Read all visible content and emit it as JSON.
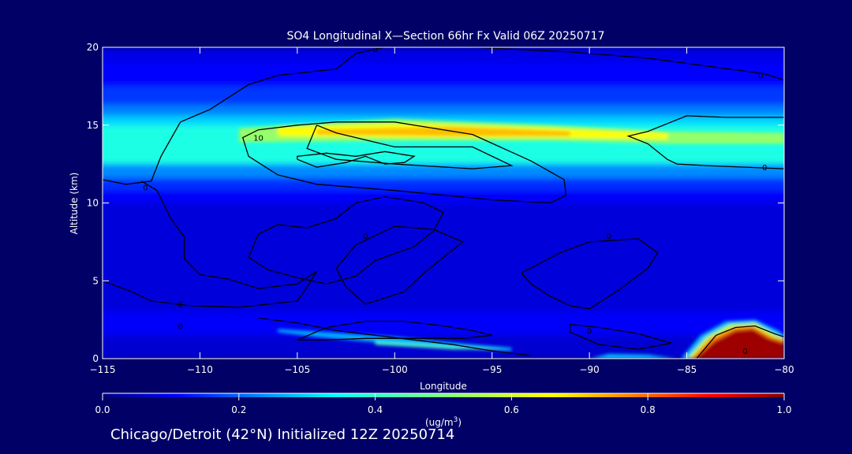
{
  "chart_data": {
    "type": "heatmap",
    "title": "SO4 Longitudinal X—Section 66hr  Fx Valid 06Z 20250717",
    "xlabel": "Longitude",
    "ylabel": "Altitude (km)",
    "xlim": [
      -115,
      -80
    ],
    "ylim": [
      0,
      20
    ],
    "x_ticks": [
      -115,
      -110,
      -105,
      -100,
      -95,
      -90,
      -85,
      -80
    ],
    "x_tick_labels": [
      "−115",
      "−110",
      "−105",
      "−100",
      "−95",
      "−90",
      "−85",
      "−80"
    ],
    "y_ticks": [
      0,
      5,
      10,
      15,
      20
    ],
    "y_tick_labels": [
      "0",
      "5",
      "10",
      "15",
      "20"
    ],
    "colorbar": {
      "min": 0.0,
      "max": 1.0,
      "ticks": [
        0.0,
        0.2,
        0.4,
        0.6,
        0.8,
        1.0
      ],
      "tick_labels": [
        "0.0",
        "0.2",
        "0.4",
        "0.6",
        "0.8",
        "1.0"
      ],
      "units_prefix": "(ug/m",
      "units_sup": "3",
      "units_suffix": ")",
      "colormap": "jet"
    },
    "background_levels": [
      {
        "z": [
          19,
          20
        ],
        "v": 0.1
      },
      {
        "z": [
          17.5,
          19
        ],
        "v": 0.13
      },
      {
        "z": [
          16.3,
          17.5
        ],
        "v": 0.18
      },
      {
        "z": [
          15.6,
          16.3
        ],
        "v": 0.25
      },
      {
        "z": [
          15.0,
          15.6
        ],
        "v": 0.33
      },
      {
        "z": [
          12.5,
          15.0
        ],
        "v": 0.4
      },
      {
        "z": [
          11.6,
          12.5
        ],
        "v": 0.26
      },
      {
        "z": [
          10.8,
          11.6
        ],
        "v": 0.17
      },
      {
        "z": [
          10.0,
          10.8
        ],
        "v": 0.12
      },
      {
        "z": [
          3.0,
          10.0
        ],
        "v": 0.09
      },
      {
        "z": [
          1.5,
          3.0
        ],
        "v": 0.12
      },
      {
        "z": [
          0,
          1.5
        ],
        "v": 0.08
      }
    ],
    "filled_features": [
      {
        "v": 0.52,
        "points": [
          [
            -108,
            14.8
          ],
          [
            -100,
            15.4
          ],
          [
            -92,
            15.0
          ],
          [
            -86,
            14.6
          ],
          [
            -80,
            14.5
          ],
          [
            -80,
            13.8
          ],
          [
            -86,
            13.8
          ],
          [
            -92,
            14.0
          ],
          [
            -100,
            14.0
          ],
          [
            -108,
            13.9
          ]
        ]
      },
      {
        "v": 0.62,
        "points": [
          [
            -106,
            14.9
          ],
          [
            -99,
            15.1
          ],
          [
            -92,
            14.8
          ],
          [
            -86,
            14.5
          ],
          [
            -86,
            14.1
          ],
          [
            -92,
            14.2
          ],
          [
            -99,
            14.2
          ],
          [
            -106,
            14.3
          ]
        ]
      },
      {
        "v": 0.69,
        "points": [
          [
            -104,
            14.7
          ],
          [
            -97,
            14.9
          ],
          [
            -91,
            14.6
          ],
          [
            -91,
            14.3
          ],
          [
            -97,
            14.3
          ],
          [
            -104,
            14.4
          ]
        ]
      },
      {
        "v": 0.3,
        "points": [
          [
            -106,
            1.9
          ],
          [
            -100,
            1.4
          ],
          [
            -96,
            0.9
          ],
          [
            -94,
            0.7
          ],
          [
            -94,
            0.5
          ],
          [
            -98,
            0.7
          ],
          [
            -104,
            1.4
          ],
          [
            -106,
            1.7
          ]
        ]
      },
      {
        "v": 0.45,
        "points": [
          [
            -101,
            1.1
          ],
          [
            -97,
            0.8
          ],
          [
            -94,
            0.6
          ],
          [
            -97,
            0.6
          ],
          [
            -101,
            0.9
          ]
        ]
      },
      {
        "v": 0.32,
        "points": [
          [
            -90,
            0
          ],
          [
            -89,
            0.3
          ],
          [
            -87,
            0.25
          ],
          [
            -85.5,
            0
          ],
          [
            -90,
            0
          ]
        ]
      },
      {
        "v": 0.3,
        "points": [
          [
            -85.3,
            0
          ],
          [
            -84.3,
            1.5
          ],
          [
            -83,
            2.4
          ],
          [
            -81.5,
            2.5
          ],
          [
            -80.3,
            1.8
          ],
          [
            -80,
            1.5
          ],
          [
            -80,
            0
          ]
        ]
      },
      {
        "v": 0.55,
        "points": [
          [
            -85.0,
            0
          ],
          [
            -84.0,
            1.4
          ],
          [
            -82.8,
            2.2
          ],
          [
            -81.5,
            2.3
          ],
          [
            -80.5,
            1.6
          ],
          [
            -80,
            1.3
          ],
          [
            -80,
            0
          ]
        ]
      },
      {
        "v": 0.75,
        "points": [
          [
            -84.8,
            0
          ],
          [
            -83.8,
            1.3
          ],
          [
            -82.6,
            2.0
          ],
          [
            -81.6,
            2.1
          ],
          [
            -80.6,
            1.4
          ],
          [
            -80,
            1.2
          ],
          [
            -80,
            0
          ]
        ]
      },
      {
        "v": 0.97,
        "points": [
          [
            -84.6,
            0
          ],
          [
            -83.6,
            1.1
          ],
          [
            -82.5,
            1.8
          ],
          [
            -81.6,
            1.9
          ],
          [
            -80.8,
            1.3
          ],
          [
            -80,
            1.0
          ],
          [
            -80,
            0
          ]
        ]
      }
    ],
    "contours": [
      {
        "points": [
          [
            -115,
            11.5
          ],
          [
            -113.8,
            11.2
          ],
          [
            -112.5,
            11.4
          ],
          [
            -112.0,
            13.0
          ],
          [
            -111.0,
            15.2
          ],
          [
            -109.5,
            16.0
          ],
          [
            -107.5,
            17.6
          ],
          [
            -106.0,
            18.2
          ],
          [
            -103.0,
            18.6
          ],
          [
            -102.0,
            19.6
          ],
          [
            -100.5,
            20.0
          ],
          [
            -96.0,
            20.0
          ],
          [
            -91.0,
            19.7
          ],
          [
            -87.0,
            19.3
          ],
          [
            -84.0,
            18.8
          ],
          [
            -81.0,
            18.3
          ],
          [
            -80.0,
            17.9
          ]
        ]
      },
      {
        "points": [
          [
            -80,
            12.2
          ],
          [
            -82.0,
            12.3
          ],
          [
            -84.0,
            12.4
          ],
          [
            -85.5,
            12.5
          ],
          [
            -86.0,
            12.8
          ],
          [
            -87.0,
            13.8
          ],
          [
            -88.0,
            14.3
          ],
          [
            -87.0,
            14.6
          ],
          [
            -85.0,
            15.6
          ],
          [
            -83.0,
            15.5
          ],
          [
            -80,
            15.5
          ]
        ]
      },
      {
        "points": [
          [
            -107.5,
            13.0
          ],
          [
            -106.0,
            11.8
          ],
          [
            -104.0,
            11.2
          ],
          [
            -100.0,
            10.8
          ],
          [
            -95.0,
            10.2
          ],
          [
            -92.0,
            10.0
          ],
          [
            -91.2,
            10.5
          ],
          [
            -91.3,
            11.5
          ],
          [
            -93.0,
            12.7
          ],
          [
            -96.0,
            14.4
          ],
          [
            -100.0,
            15.2
          ],
          [
            -103.0,
            15.2
          ],
          [
            -105.0,
            15.0
          ],
          [
            -107.0,
            14.7
          ],
          [
            -107.8,
            14.2
          ],
          [
            -107.5,
            13.0
          ]
        ]
      },
      {
        "points": [
          [
            -104.0,
            15.0
          ],
          [
            -103.0,
            14.5
          ],
          [
            -100.0,
            13.6
          ],
          [
            -96.0,
            13.6
          ],
          [
            -94.0,
            12.4
          ],
          [
            -96.0,
            12.2
          ],
          [
            -100.0,
            12.5
          ],
          [
            -103.0,
            12.8
          ],
          [
            -104.5,
            13.5
          ],
          [
            -104.0,
            15.0
          ]
        ]
      },
      {
        "points": [
          [
            -105.0,
            12.8
          ],
          [
            -104.0,
            12.3
          ],
          [
            -102.5,
            12.6
          ],
          [
            -101.5,
            13.0
          ],
          [
            -100.5,
            12.5
          ],
          [
            -99.5,
            12.6
          ],
          [
            -99.0,
            13.0
          ],
          [
            -100.5,
            13.3
          ],
          [
            -102.0,
            13.0
          ],
          [
            -103.5,
            13.2
          ],
          [
            -105.0,
            13.0
          ],
          [
            -105.0,
            12.8
          ]
        ]
      },
      {
        "points": [
          [
            -115,
            5.0
          ],
          [
            -113.5,
            4.3
          ],
          [
            -112.5,
            3.7
          ],
          [
            -110.5,
            3.4
          ],
          [
            -108.0,
            3.3
          ],
          [
            -106.5,
            3.5
          ],
          [
            -105.0,
            3.7
          ],
          [
            -104.5,
            4.6
          ],
          [
            -104.0,
            5.6
          ],
          [
            -105.0,
            4.8
          ],
          [
            -107.0,
            4.5
          ],
          [
            -108.5,
            5.1
          ],
          [
            -110.0,
            5.4
          ],
          [
            -110.8,
            6.4
          ],
          [
            -110.8,
            7.8
          ],
          [
            -111.5,
            9.0
          ],
          [
            -112.2,
            10.8
          ],
          [
            -113.0,
            11.4
          ]
        ]
      },
      {
        "points": [
          [
            -107.5,
            6.5
          ],
          [
            -107.0,
            8.0
          ],
          [
            -106.0,
            8.6
          ],
          [
            -104.5,
            8.4
          ],
          [
            -103.0,
            9.0
          ],
          [
            -102.0,
            10.0
          ],
          [
            -100.5,
            10.4
          ],
          [
            -98.5,
            10.0
          ],
          [
            -97.5,
            9.4
          ],
          [
            -98.0,
            8.2
          ],
          [
            -99.0,
            7.2
          ],
          [
            -101.0,
            6.3
          ],
          [
            -102.0,
            5.3
          ],
          [
            -103.5,
            4.8
          ],
          [
            -105.0,
            5.2
          ],
          [
            -106.5,
            5.7
          ],
          [
            -107.5,
            6.5
          ]
        ]
      },
      {
        "points": [
          [
            -102.5,
            4.6
          ],
          [
            -103.0,
            5.8
          ],
          [
            -102.0,
            7.3
          ],
          [
            -100.0,
            8.5
          ],
          [
            -98.0,
            8.3
          ],
          [
            -96.5,
            7.5
          ],
          [
            -97.5,
            6.5
          ],
          [
            -98.5,
            5.5
          ],
          [
            -99.5,
            4.3
          ],
          [
            -101.5,
            3.5
          ],
          [
            -102.5,
            4.6
          ]
        ]
      },
      {
        "points": [
          [
            -93.5,
            5.5
          ],
          [
            -91.5,
            6.8
          ],
          [
            -90.0,
            7.5
          ],
          [
            -87.5,
            7.7
          ],
          [
            -86.5,
            6.8
          ],
          [
            -87.0,
            5.8
          ],
          [
            -88.5,
            4.4
          ],
          [
            -90.0,
            3.2
          ],
          [
            -91.0,
            3.4
          ],
          [
            -92.0,
            4.0
          ],
          [
            -93.0,
            4.8
          ],
          [
            -93.5,
            5.5
          ]
        ]
      },
      {
        "points": [
          [
            -105.0,
            1.2
          ],
          [
            -103.5,
            2.0
          ],
          [
            -101.5,
            2.4
          ],
          [
            -99.5,
            2.4
          ],
          [
            -97.5,
            2.1
          ],
          [
            -96.0,
            1.8
          ],
          [
            -95.0,
            1.5
          ],
          [
            -96.5,
            1.3
          ],
          [
            -99.0,
            1.3
          ],
          [
            -101.5,
            1.3
          ],
          [
            -103.5,
            1.2
          ],
          [
            -105.0,
            1.2
          ]
        ]
      },
      {
        "points": [
          [
            -107.0,
            2.6
          ],
          [
            -105.0,
            2.3
          ],
          [
            -103.0,
            1.8
          ],
          [
            -101.0,
            1.5
          ],
          [
            -99.0,
            1.2
          ],
          [
            -97.0,
            0.9
          ],
          [
            -95.0,
            0.5
          ],
          [
            -93.0,
            0.2
          ]
        ]
      },
      {
        "points": [
          [
            -91.0,
            2.2
          ],
          [
            -89.5,
            2.0
          ],
          [
            -87.5,
            1.6
          ],
          [
            -85.8,
            1.0
          ],
          [
            -87.5,
            0.6
          ],
          [
            -89.5,
            0.9
          ],
          [
            -91.0,
            1.7
          ],
          [
            -91.0,
            2.2
          ]
        ]
      },
      {
        "points": [
          [
            -84.5,
            0
          ],
          [
            -83.5,
            1.5
          ],
          [
            -82.5,
            2.0
          ],
          [
            -81.5,
            2.1
          ],
          [
            -80.5,
            1.6
          ],
          [
            -80.0,
            1.4
          ]
        ]
      }
    ],
    "contour_labels": [
      {
        "text": "0",
        "x": -101,
        "y": 19.9
      },
      {
        "text": "0",
        "x": -81.2,
        "y": 18.2
      },
      {
        "text": "10",
        "x": -107,
        "y": 14.2
      },
      {
        "text": "0",
        "x": -81.0,
        "y": 12.3
      },
      {
        "text": "0",
        "x": -112.8,
        "y": 11.0
      },
      {
        "text": "0",
        "x": -101.5,
        "y": 7.9
      },
      {
        "text": "0",
        "x": -89,
        "y": 7.9
      },
      {
        "text": "0",
        "x": -111.0,
        "y": 3.5
      },
      {
        "text": "0",
        "x": -111.0,
        "y": 2.1
      },
      {
        "text": "0",
        "x": -90.0,
        "y": 1.8
      },
      {
        "text": "0",
        "x": -82.0,
        "y": 0.5
      }
    ]
  },
  "footer": "Chicago/Detroit (42°N) Initialized 12Z 20250714"
}
